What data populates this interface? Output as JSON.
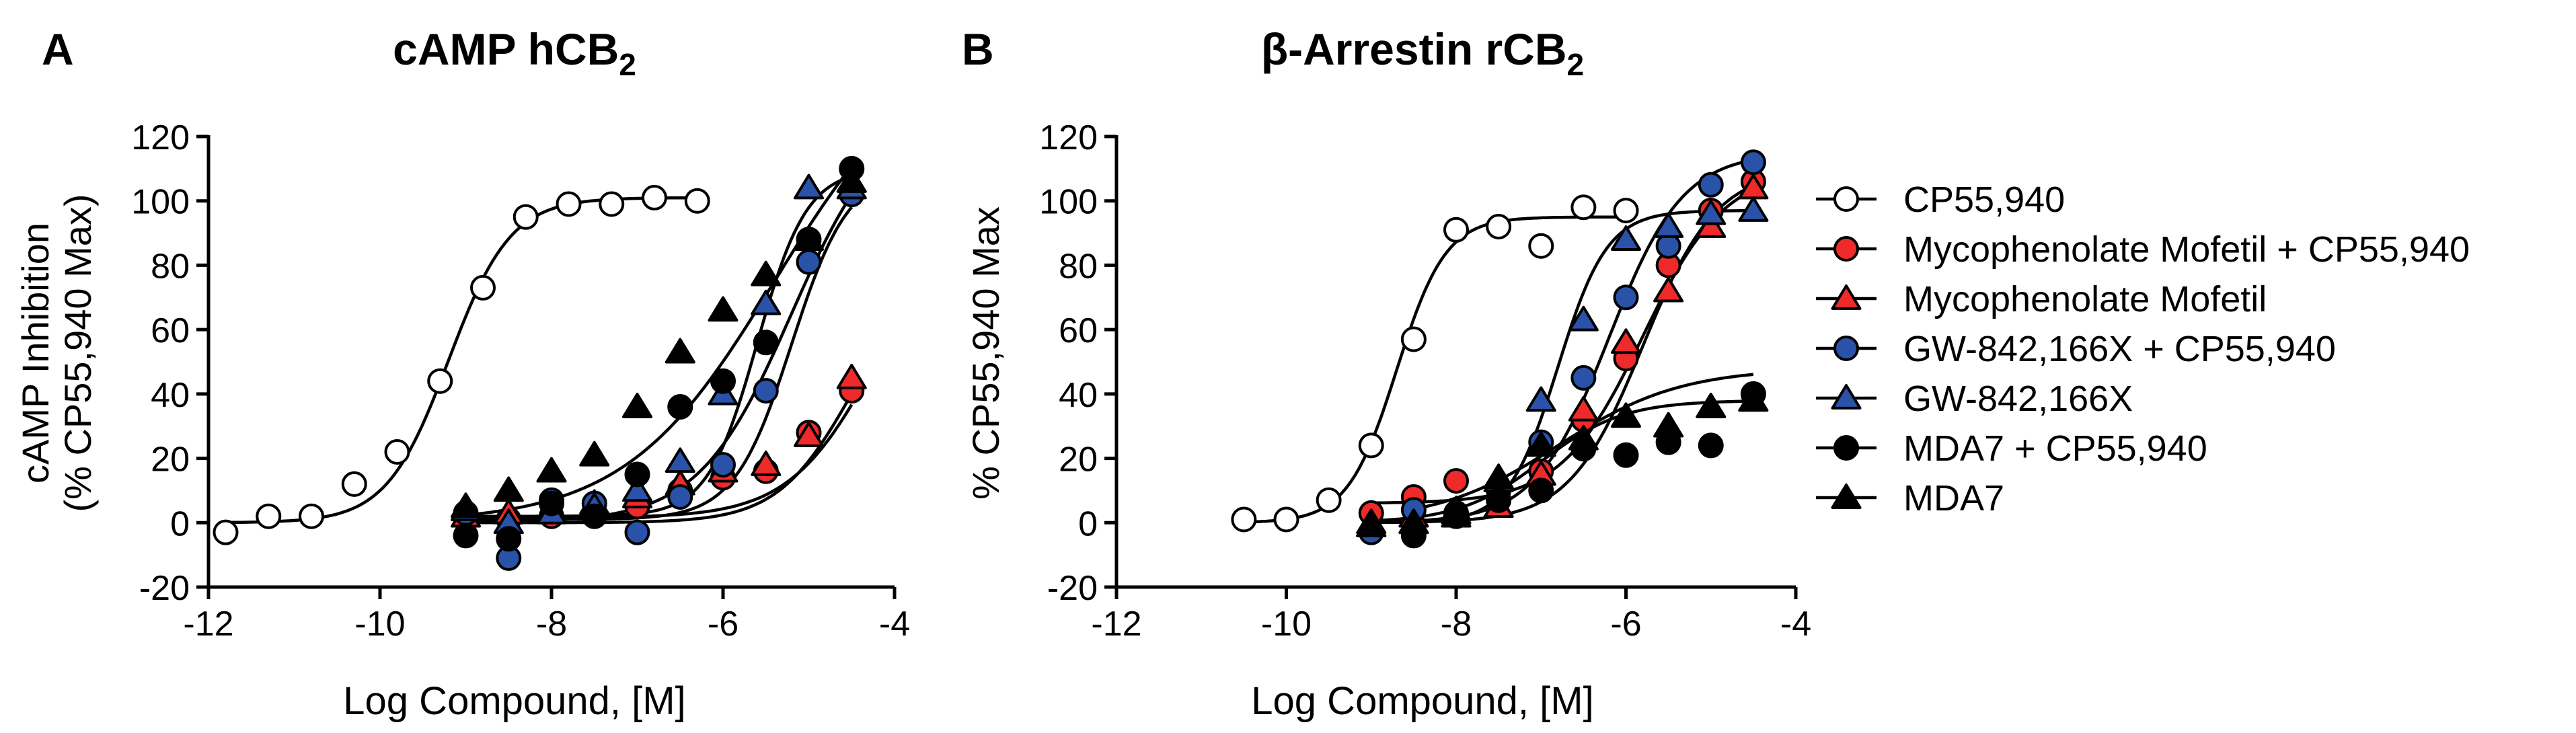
{
  "figure": {
    "panels": [
      {
        "letter": "A",
        "title_main": "cAMP hCB",
        "title_sub": "2",
        "ylabel_line1": "cAMP Inhibition",
        "ylabel_line2": "(% CP55,940 Max)",
        "xlabel": "Log Compound, [M]"
      },
      {
        "letter": "B",
        "title_main": "β-Arrestin rCB",
        "title_sub": "2",
        "ylabel_line1": "% CP55,940 Max",
        "ylabel_line2": "",
        "xlabel": "Log Compound, [M]"
      }
    ]
  },
  "legend": {
    "items": [
      {
        "label": "CP55,940",
        "marker": "circle",
        "fill": "#ffffff"
      },
      {
        "label": "Mycophenolate Mofetil + CP55,940",
        "marker": "circle",
        "fill": "#ee2a2a"
      },
      {
        "label": "Mycophenolate Mofetil",
        "marker": "triangle",
        "fill": "#ee2a2a"
      },
      {
        "label": "GW-842,166X + CP55,940",
        "marker": "circle",
        "fill": "#2a52a8"
      },
      {
        "label": "GW-842,166X",
        "marker": "triangle",
        "fill": "#2a52a8"
      },
      {
        "label": "MDA7 + CP55,940",
        "marker": "circle",
        "fill": "#000000"
      },
      {
        "label": "MDA7",
        "marker": "triangle",
        "fill": "#000000"
      }
    ]
  },
  "chart_data": [
    {
      "type": "scatter",
      "title": "cAMP hCB2",
      "xlabel": "Log Compound, [M]",
      "ylabel": "cAMP Inhibition (% CP55,940 Max)",
      "xlim": [
        -12,
        -4
      ],
      "ylim": [
        -20,
        120
      ],
      "xticks": [
        -12,
        -10,
        -8,
        -6,
        -4
      ],
      "yticks": [
        -20,
        0,
        20,
        40,
        60,
        80,
        100,
        120
      ],
      "series": [
        {
          "name": "CP55,940",
          "marker": "circle",
          "color": "#ffffff",
          "x": [
            -11.8,
            -11.3,
            -10.8,
            -10.3,
            -9.8,
            -9.3,
            -8.8,
            -8.3,
            -7.8,
            -7.3,
            -6.8,
            -6.3
          ],
          "y": [
            -3,
            2,
            2,
            12,
            22,
            44,
            73,
            95,
            99,
            99,
            101,
            100
          ],
          "curve": [
            -3,
            0,
            101,
            -9.2,
            1.2
          ]
        },
        {
          "name": "Mycophenolate Mofetil + CP55,940",
          "marker": "circle",
          "color": "#ee2a2a",
          "x": [
            -9,
            -8.5,
            -8,
            -7.5,
            -7,
            -6.5,
            -6,
            -5.5,
            -5,
            -4.5
          ],
          "y": [
            1,
            1,
            2,
            3,
            5,
            10,
            14,
            16,
            28,
            41
          ],
          "curve": [
            0,
            0,
            80,
            -4.5,
            1.0
          ]
        },
        {
          "name": "Mycophenolate Mofetil",
          "marker": "triangle",
          "color": "#ee2a2a",
          "x": [
            -9,
            -8.5,
            -8,
            -7.5,
            -7,
            -6.5,
            -6,
            -5.5,
            -5,
            -4.5
          ],
          "y": [
            2,
            3,
            4,
            6,
            8,
            12,
            16,
            18,
            27,
            45
          ],
          "curve": [
            0,
            1.5,
            100,
            -4.2,
            0.85
          ]
        },
        {
          "name": "GW-842,166X + CP55,940",
          "marker": "circle",
          "color": "#2a52a8",
          "x": [
            -9,
            -8.5,
            -8,
            -7.5,
            -7,
            -6.5,
            -6,
            -5.5,
            -5,
            -4.5
          ],
          "y": [
            3,
            -11,
            7,
            6,
            -3,
            8,
            18,
            41,
            81,
            102
          ],
          "curve": [
            0,
            1,
            110,
            -5.2,
            1.3
          ]
        },
        {
          "name": "GW-842,166X",
          "marker": "triangle",
          "color": "#2a52a8",
          "x": [
            -9,
            -8.5,
            -8,
            -7.5,
            -7,
            -6.5,
            -6,
            -5.5,
            -5,
            -4.5
          ],
          "y": [
            4,
            0,
            3,
            5,
            10,
            19,
            40,
            68,
            104,
            104
          ],
          "curve": [
            0,
            2,
            110,
            -5.6,
            1.5
          ]
        },
        {
          "name": "MDA7 + CP55,940",
          "marker": "circle",
          "color": "#000000",
          "x": [
            -9,
            -8.5,
            -8,
            -7.5,
            -7,
            -6.5,
            -6,
            -5.5,
            -5,
            -4.5
          ],
          "y": [
            -4,
            -5,
            6,
            2,
            15,
            36,
            44,
            56,
            88,
            110
          ],
          "curve": [
            0,
            0,
            130,
            -5.2,
            0.8
          ]
        },
        {
          "name": "MDA7",
          "marker": "triangle",
          "color": "#000000",
          "x": [
            -9,
            -8.5,
            -8,
            -7.5,
            -7,
            -6.5,
            -6,
            -5.5,
            -5,
            -4.5
          ],
          "y": [
            5,
            10,
            16,
            21,
            36,
            53,
            66,
            77,
            88,
            106
          ],
          "curve": [
            0,
            0,
            150,
            -5.4,
            0.5
          ]
        }
      ]
    },
    {
      "type": "scatter",
      "title": "β-Arrestin rCB2",
      "xlabel": "Log Compound, [M]",
      "ylabel": "% CP55,940 Max",
      "xlim": [
        -12,
        -4
      ],
      "ylim": [
        -20,
        120
      ],
      "xticks": [
        -12,
        -10,
        -8,
        -6,
        -4
      ],
      "yticks": [
        -20,
        0,
        20,
        40,
        60,
        80,
        100,
        120
      ],
      "series": [
        {
          "name": "CP55,940",
          "marker": "circle",
          "color": "#ffffff",
          "x": [
            -10.5,
            -10,
            -9.5,
            -9,
            -8.5,
            -8,
            -7.5,
            -7,
            -6.5,
            -6
          ],
          "y": [
            1,
            1,
            7,
            24,
            57,
            91,
            92,
            86,
            98,
            97
          ],
          "curve": [
            1,
            0,
            95,
            -8.7,
            1.5
          ]
        },
        {
          "name": "Mycophenolate Mofetil + CP55,940",
          "marker": "circle",
          "color": "#ee2a2a",
          "x": [
            -9,
            -8.5,
            -8,
            -7.5,
            -7,
            -6.5,
            -6,
            -5.5,
            -5,
            -4.5
          ],
          "y": [
            3,
            8,
            13,
            10,
            16,
            32,
            51,
            80,
            97,
            106
          ],
          "curve": [
            -8.5,
            6,
            110,
            -5.8,
            0.9
          ]
        },
        {
          "name": "Mycophenolate Mofetil",
          "marker": "triangle",
          "color": "#ee2a2a",
          "x": [
            -9,
            -8.5,
            -8,
            -7.5,
            -7,
            -6.5,
            -6,
            -5.5,
            -5,
            -4.5
          ],
          "y": [
            0,
            2,
            3,
            5,
            15,
            35,
            56,
            72,
            92,
            104
          ],
          "curve": [
            -9,
            0,
            110,
            -5.8,
            1.0
          ]
        },
        {
          "name": "GW-842,166X + CP55,940",
          "marker": "circle",
          "color": "#2a52a8",
          "x": [
            -9,
            -8.5,
            -8,
            -7.5,
            -7,
            -6.5,
            -6,
            -5.5,
            -5,
            -4.5
          ],
          "y": [
            -3,
            4,
            2,
            11,
            25,
            45,
            70,
            86,
            105,
            112
          ],
          "curve": [
            -9,
            0,
            115,
            -6.2,
            1.0
          ]
        },
        {
          "name": "GW-842,166X",
          "marker": "triangle",
          "color": "#2a52a8",
          "x": [
            -9,
            -8.5,
            -8,
            -7.5,
            -7,
            -6.5,
            -6,
            -5.5,
            -5,
            -4.5
          ],
          "y": [
            -1,
            0,
            4,
            13,
            38,
            63,
            88,
            92,
            96,
            97
          ],
          "curve": [
            -9,
            0,
            97,
            -6.8,
            1.5
          ]
        },
        {
          "name": "MDA7 + CP55,940",
          "marker": "circle",
          "color": "#000000",
          "x": [
            -8.5,
            -8,
            -7.5,
            -7,
            -6.5,
            -6,
            -5.5,
            -5,
            -4.5
          ],
          "y": [
            -4,
            3,
            7,
            10,
            23,
            21,
            25,
            24,
            40
          ],
          "curve": [
            -8.5,
            0,
            48,
            -6.8,
            0.6
          ]
        },
        {
          "name": "MDA7",
          "marker": "triangle",
          "color": "#000000",
          "x": [
            -9,
            -8.5,
            -8,
            -7.5,
            -7,
            -6.5,
            -6,
            -5.5,
            -5,
            -4.5
          ],
          "y": [
            -1,
            0,
            2,
            14,
            24,
            26,
            33,
            30,
            36,
            38
          ],
          "curve": [
            -9,
            0,
            38,
            -7.0,
            0.9
          ]
        }
      ]
    }
  ]
}
